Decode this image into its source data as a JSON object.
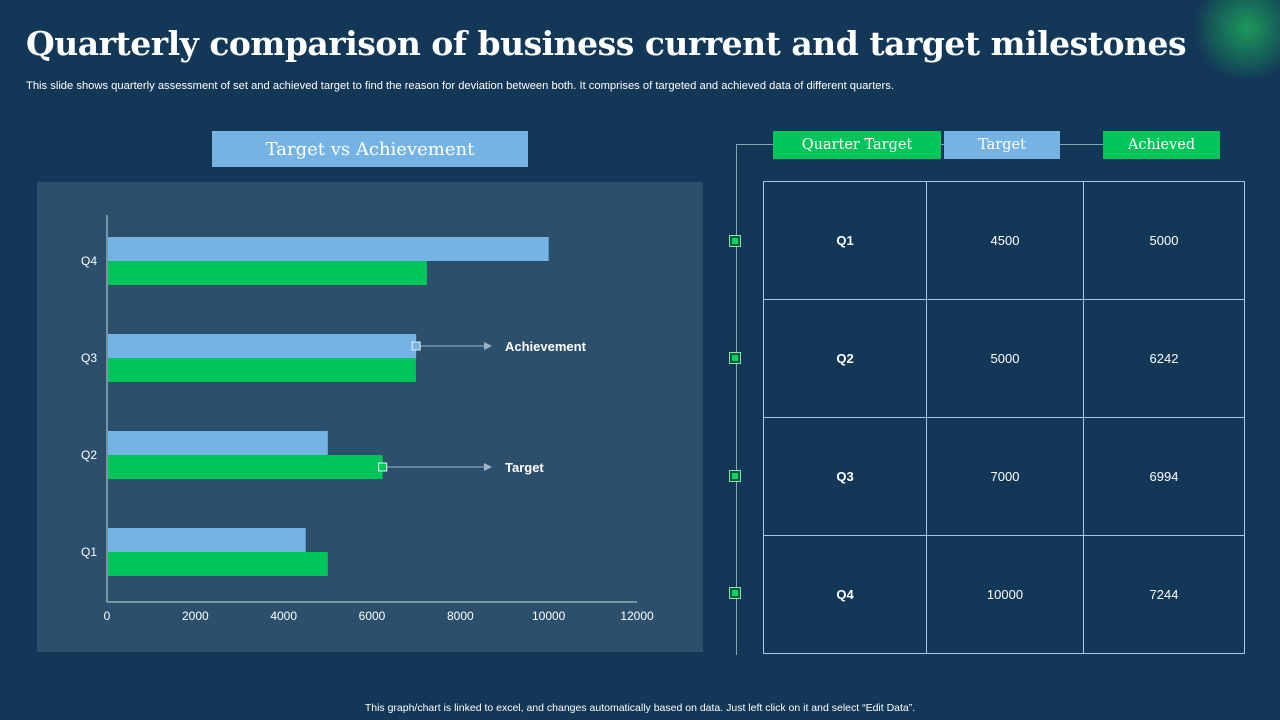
{
  "title": "Quarterly comparison of business current and target milestones",
  "subtitle": "This slide shows quarterly assessment of set and achieved target to find the reason for deviation between both. It comprises of targeted and achieved data of different quarters.",
  "footer": "This graph/chart is linked to excel, and changes automatically based on data. Just left click on it and select “Edit Data”.",
  "colors": {
    "target": "#75b3e4",
    "achieved": "#00c55b",
    "background": "#133757",
    "panel": "#2c506c"
  },
  "chart_heading": "Target vs Achievement",
  "chart_data": {
    "type": "bar",
    "orientation": "horizontal",
    "title": "Target vs Achievement",
    "categories": [
      "Q1",
      "Q2",
      "Q3",
      "Q4"
    ],
    "series": [
      {
        "name": "Target",
        "color": "#75b3e4",
        "values": [
          4500,
          5000,
          7000,
          10000
        ]
      },
      {
        "name": "Achievement",
        "color": "#00c55b",
        "values": [
          5000,
          6242,
          6994,
          7244
        ]
      }
    ],
    "xlim": [
      0,
      12000
    ],
    "xticks": [
      "0",
      "2000",
      "4000",
      "6000",
      "8000",
      "10000",
      "12000"
    ],
    "annotations": [
      {
        "label": "Achievement",
        "category": "Q3",
        "series": "Target"
      },
      {
        "label": "Target",
        "category": "Q2",
        "series": "Achievement"
      }
    ]
  },
  "table": {
    "headers": [
      "Quarter Target",
      "Target",
      "Achieved"
    ],
    "rows": [
      {
        "quarter": "Q1",
        "target": "4500",
        "achieved": "5000"
      },
      {
        "quarter": "Q2",
        "target": "5000",
        "achieved": "6242"
      },
      {
        "quarter": "Q3",
        "target": "7000",
        "achieved": "6994"
      },
      {
        "quarter": "Q4",
        "target": "10000",
        "achieved": "7244"
      }
    ]
  }
}
